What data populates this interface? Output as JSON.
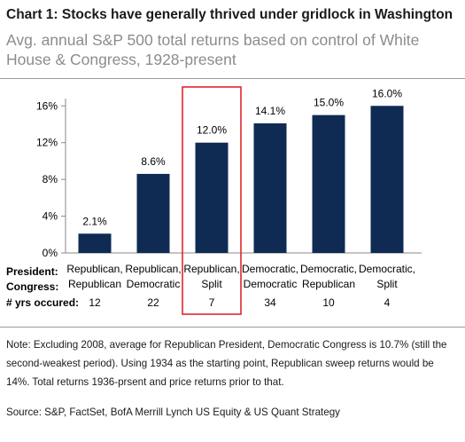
{
  "title": "Chart 1: Stocks have generally thrived under gridlock in Washington",
  "subtitle": "Avg. annual S&P 500 total returns based on control of White House & Congress, 1928-present",
  "row_labels": {
    "president": "President:",
    "congress": "Congress:",
    "years": "# yrs occured:"
  },
  "chart_data": {
    "type": "bar",
    "categories": [
      {
        "president": "Republican,",
        "congress": "Republican"
      },
      {
        "president": "Republican,",
        "congress": "Democratic"
      },
      {
        "president": "Republican,",
        "congress": "Split"
      },
      {
        "president": "Democratic,",
        "congress": "Democratic"
      },
      {
        "president": "Democratic,",
        "congress": "Republican"
      },
      {
        "president": "Democratic,",
        "congress": "Split"
      }
    ],
    "values": [
      2.1,
      8.6,
      12.0,
      14.1,
      15.0,
      16.0
    ],
    "data_labels": [
      "2.1%",
      "8.6%",
      "12.0%",
      "14.1%",
      "15.0%",
      "16.0%"
    ],
    "years_occurred": [
      "12",
      "22",
      "7",
      "34",
      "10",
      "4"
    ],
    "y_ticks": [
      "0%",
      "4%",
      "8%",
      "12%",
      "16%"
    ],
    "y_tick_values": [
      0,
      4,
      8,
      12,
      16
    ],
    "ylim": [
      0,
      16.8
    ],
    "highlighted_category_index": 2,
    "grid": false,
    "colors": {
      "bar": "#0f2b54",
      "highlight_box": "#e0272c",
      "axis": "#8a8a8a"
    }
  },
  "note": "Note: Excluding 2008, average for Republican President, Democratic Congress is 10.7% (still the second-weakest period). Using 1934 as the starting point, Republican sweep returns would be 14%. Total returns 1936-prsent and price returns prior to that.",
  "source": "Source: S&P, FactSet, BofA Merrill Lynch US Equity & US Quant Strategy"
}
